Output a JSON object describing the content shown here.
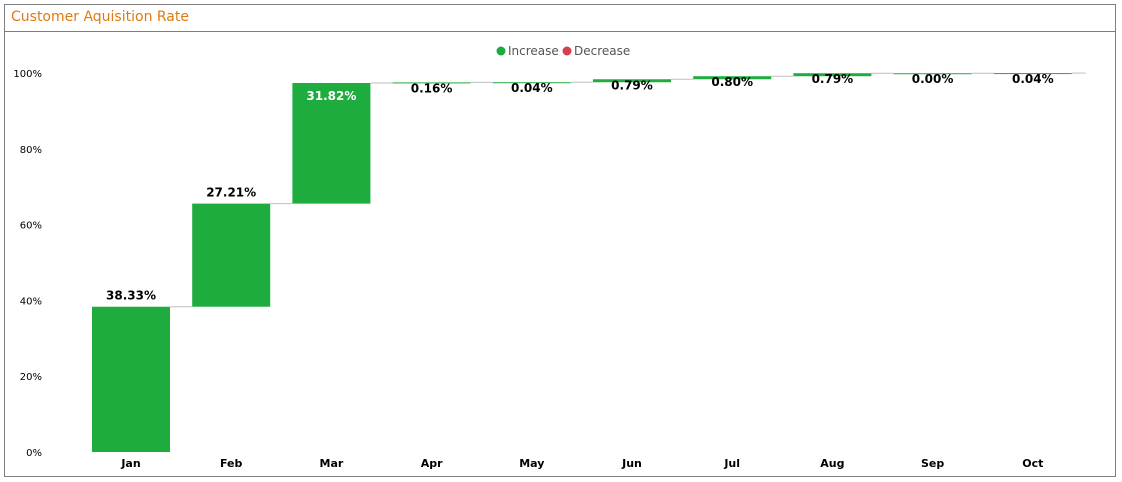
{
  "panel": {
    "title": "Customer Aquisition Rate"
  },
  "colors": {
    "increase": "#1eac3f",
    "decrease": "#d6404a",
    "title": "#e07a10",
    "connector": "#bfbfbf"
  },
  "chart_data": {
    "type": "waterfall",
    "title": "Customer Aquisition Rate",
    "legend": {
      "placement": "top-center",
      "entries": [
        "Increase",
        "Decrease"
      ]
    },
    "categories": [
      "Jan",
      "Feb",
      "Mar",
      "Apr",
      "May",
      "Jun",
      "Jul",
      "Aug",
      "Sep",
      "Oct"
    ],
    "values": [
      38.33,
      27.21,
      31.82,
      0.16,
      0.04,
      0.79,
      0.8,
      0.79,
      0.0,
      0.04
    ],
    "data_labels": [
      "38.33%",
      "27.21%",
      "31.82%",
      "0.16%",
      "0.04%",
      "0.79%",
      "0.80%",
      "0.79%",
      "0.00%",
      "0.04%"
    ],
    "y_ticks": [
      "0%",
      "20%",
      "40%",
      "60%",
      "80%",
      "100%"
    ],
    "ylim": [
      0,
      100
    ],
    "grid": false
  }
}
